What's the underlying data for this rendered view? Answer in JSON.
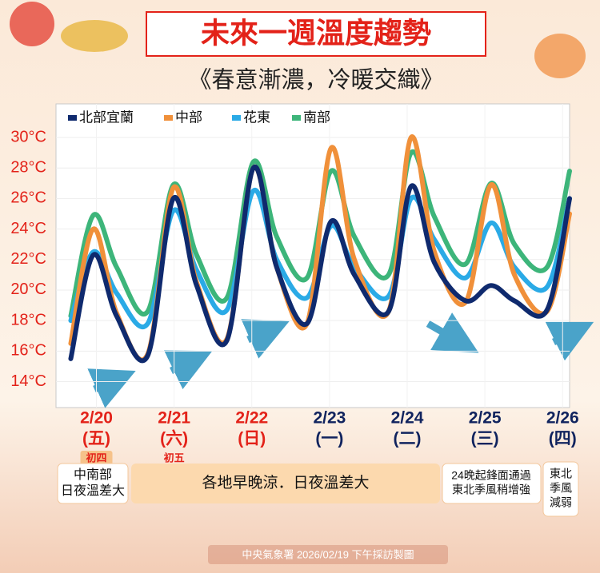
{
  "chart_data": {
    "type": "line",
    "title": "未來一週溫度趨勢",
    "subtitle": "《春意漸濃，冷暖交織》",
    "x": [
      -0.33,
      -0.04,
      0.26,
      0.66,
      0.99,
      1.29,
      1.68,
      2.02,
      2.32,
      2.71,
      3.02,
      3.32,
      3.76,
      4.05,
      4.35,
      4.75,
      5.08,
      5.38,
      5.8,
      6.09
    ],
    "xlim": [
      -0.52,
      6.09
    ],
    "xticks": [
      {
        "value": 0,
        "label": "2/20"
      },
      {
        "value": 1,
        "label": "2/21"
      },
      {
        "value": 2,
        "label": "2/22"
      },
      {
        "value": 3,
        "label": "2/23"
      },
      {
        "value": 4,
        "label": "2/24"
      },
      {
        "value": 5,
        "label": "2/25"
      },
      {
        "value": 6,
        "label": "2/26"
      }
    ],
    "xtick_sublabels": [
      "(五)",
      "(六)",
      "(日)",
      "(一)",
      "(二)",
      "(三)",
      "(四)"
    ],
    "xtick_colors": [
      "#e32219",
      "#e32219",
      "#e32219",
      "#10235e",
      "#10235e",
      "#10235e",
      "#10235e"
    ],
    "lunar_labels": [
      "初四",
      "初五"
    ],
    "ylim": [
      12.3,
      32.2
    ],
    "yticks": [
      {
        "value": 14,
        "label": "14°C"
      },
      {
        "value": 16,
        "label": "16°C"
      },
      {
        "value": 18,
        "label": "18°C"
      },
      {
        "value": 20,
        "label": "20°C"
      },
      {
        "value": 22,
        "label": "22°C"
      },
      {
        "value": 24,
        "label": "24°C"
      },
      {
        "value": 26,
        "label": "26°C"
      },
      {
        "value": 28,
        "label": "28°C"
      },
      {
        "value": 30,
        "label": "30°C"
      }
    ],
    "grid": true,
    "series": [
      {
        "name": "南部",
        "color": "#3db57a",
        "values": [
          18.3,
          24.9,
          21.5,
          18.6,
          26.9,
          22.3,
          19.5,
          28.4,
          23.5,
          20.8,
          27.8,
          23.5,
          21.0,
          29.0,
          24.8,
          21.7,
          27.0,
          23.0,
          21.5,
          27.8
        ]
      },
      {
        "name": "花東",
        "color": "#2aaae6",
        "values": [
          18.0,
          22.5,
          19.8,
          17.8,
          25.2,
          21.3,
          18.7,
          26.5,
          22.0,
          19.5,
          24.2,
          21.5,
          19.6,
          26.0,
          23.3,
          20.8,
          24.4,
          21.5,
          20.2,
          26.0
        ]
      },
      {
        "name": "中部",
        "color": "#f0903a",
        "values": [
          16.5,
          24.0,
          18.5,
          15.8,
          26.7,
          20.5,
          16.8,
          28.0,
          21.5,
          17.8,
          29.3,
          22.0,
          18.6,
          30.0,
          22.5,
          19.2,
          26.9,
          21.0,
          18.6,
          25.0
        ]
      },
      {
        "name": "北部宜蘭",
        "color": "#0f2a6e",
        "values": [
          15.5,
          22.3,
          18.3,
          15.7,
          26.0,
          20.3,
          16.7,
          28.0,
          21.5,
          17.8,
          24.5,
          21.0,
          18.6,
          26.8,
          21.8,
          19.3,
          20.3,
          19.3,
          18.7,
          26.0
        ]
      }
    ],
    "legend_order": [
      3,
      2,
      1,
      0
    ],
    "annotations": [
      {
        "lines": [
          "中南部",
          "日夜溫差大"
        ]
      },
      {
        "lines": [
          "各地早晚涼．日夜溫差大"
        ]
      },
      {
        "lines": [
          "24晚起鋒面通過",
          "東北季風稍增強"
        ]
      },
      {
        "lines": [
          "東北",
          "季風",
          "減弱"
        ]
      }
    ],
    "footer": "中央氣象署 2026/02/19 下午採訪製圖"
  }
}
